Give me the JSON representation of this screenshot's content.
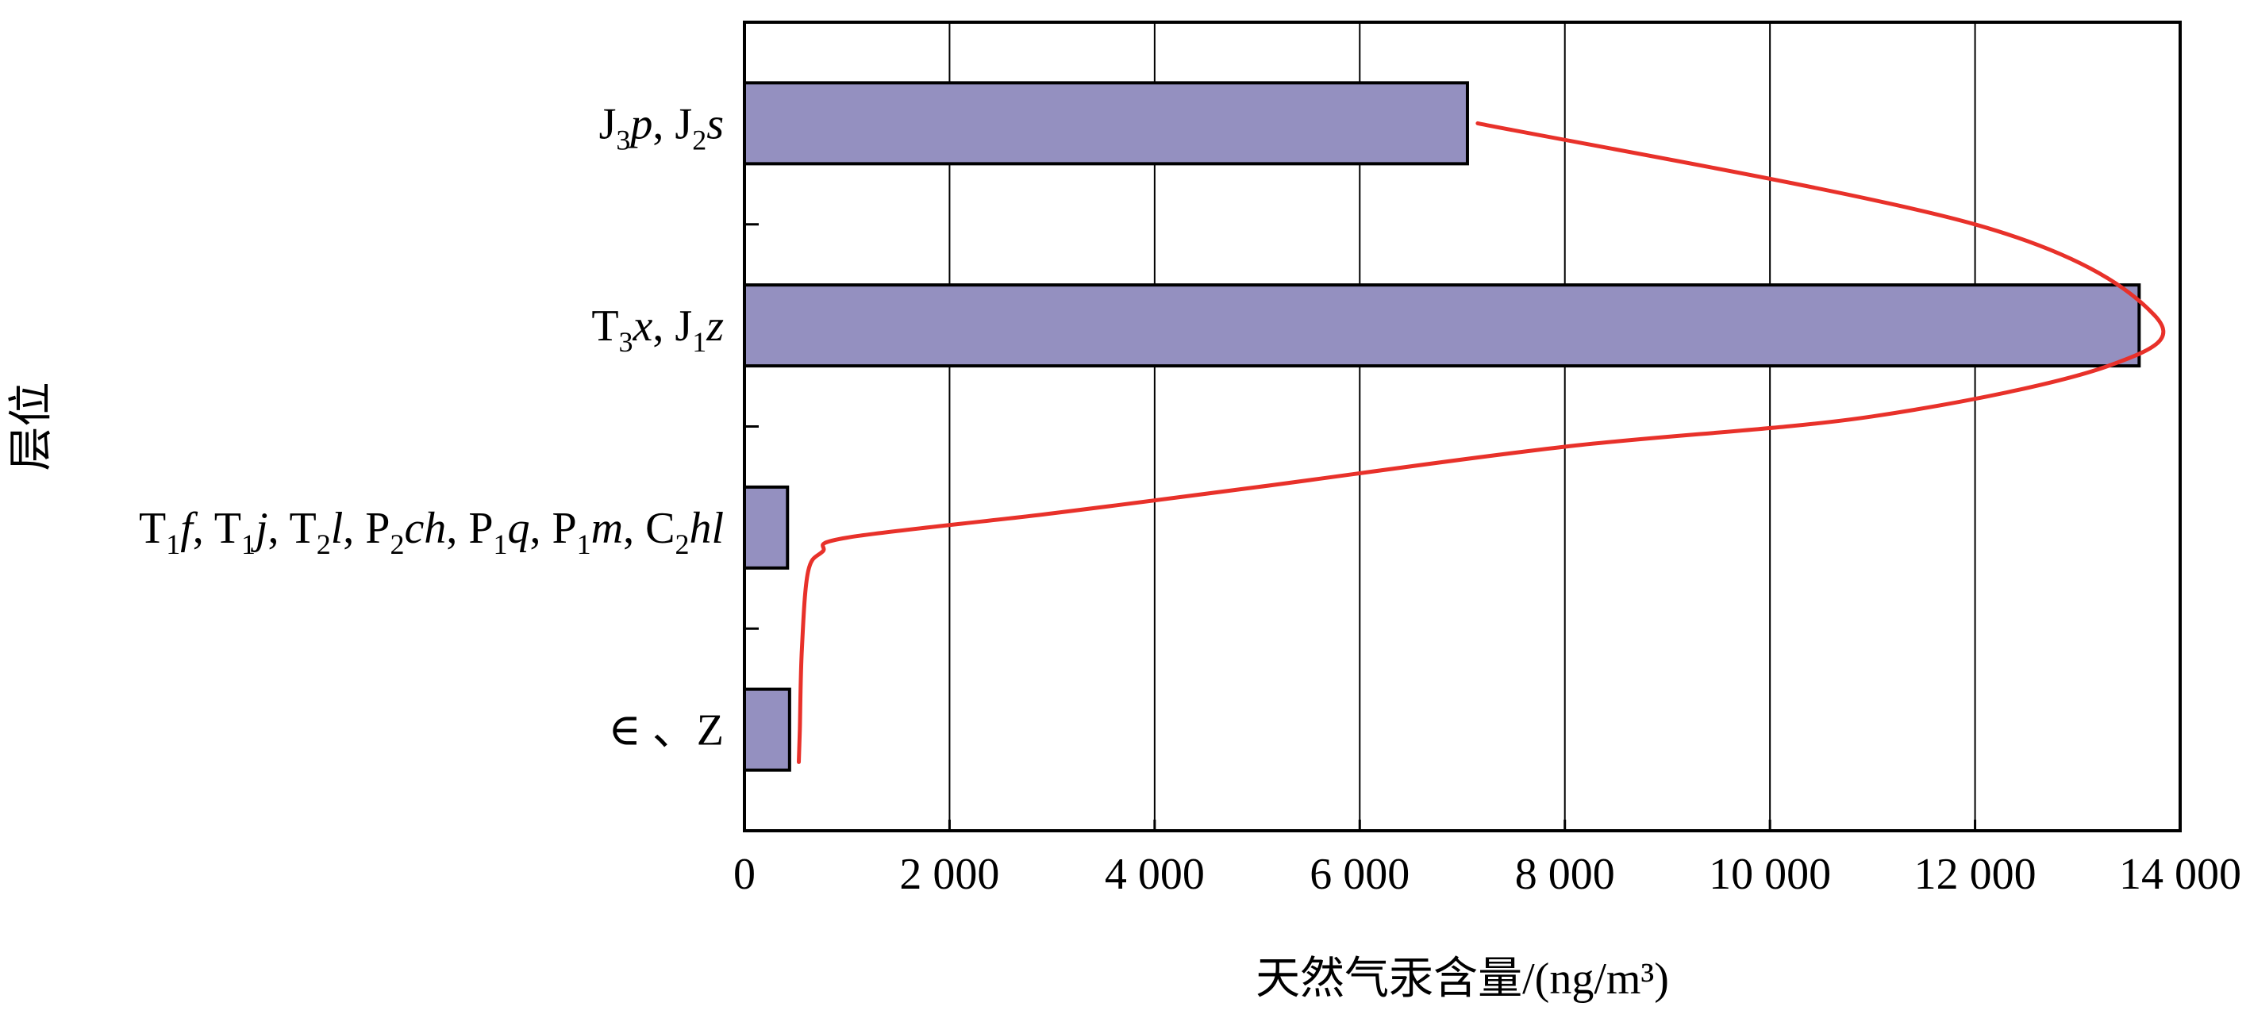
{
  "chart_data": {
    "type": "bar",
    "orientation": "horizontal",
    "categories": [
      [
        {
          "t": "J"
        },
        {
          "t": "3",
          "sub": true
        },
        {
          "t": "p",
          "it": true
        },
        {
          "t": ", J"
        },
        {
          "t": "2",
          "sub": true
        },
        {
          "t": "s",
          "it": true
        }
      ],
      [
        {
          "t": "T"
        },
        {
          "t": "3",
          "sub": true
        },
        {
          "t": "x",
          "it": true
        },
        {
          "t": ", J"
        },
        {
          "t": "1",
          "sub": true
        },
        {
          "t": "z",
          "it": true
        }
      ],
      [
        {
          "t": "T"
        },
        {
          "t": "1",
          "sub": true
        },
        {
          "t": "f",
          "it": true
        },
        {
          "t": ", T"
        },
        {
          "t": "1",
          "sub": true
        },
        {
          "t": "j",
          "it": true
        },
        {
          "t": ", T"
        },
        {
          "t": "2",
          "sub": true
        },
        {
          "t": "l",
          "it": true
        },
        {
          "t": ", P"
        },
        {
          "t": "2",
          "sub": true
        },
        {
          "t": "ch",
          "it": true
        },
        {
          "t": ", P"
        },
        {
          "t": "1",
          "sub": true
        },
        {
          "t": "q",
          "it": true
        },
        {
          "t": ", P"
        },
        {
          "t": "1",
          "sub": true
        },
        {
          "t": "m",
          "it": true
        },
        {
          "t": ", C"
        },
        {
          "t": "2",
          "sub": true
        },
        {
          "t": "hl",
          "it": true
        }
      ],
      [
        {
          "t": "∈ 、Z"
        }
      ]
    ],
    "values": [
      7050,
      13600,
      420,
      440
    ],
    "xlim": [
      0,
      14000
    ],
    "xticks": [
      0,
      2000,
      4000,
      6000,
      8000,
      10000,
      12000,
      14000
    ],
    "xtick_labels": [
      "0",
      "2 000",
      "4 000",
      "6 000",
      "8 000",
      "10 000",
      "12 000",
      "14 000"
    ],
    "xlabel": "天然气汞含量/(ng/m³)",
    "ylabel": "层位",
    "grid": "vertical",
    "bar_color": "#9490c0",
    "bar_edge_color": "#000000",
    "trend_line": {
      "color": "#e8312a",
      "points": [
        [
          7150,
          0.0
        ],
        [
          12000,
          0.5
        ],
        [
          13750,
          0.95
        ],
        [
          13300,
          1.2
        ],
        [
          11000,
          1.45
        ],
        [
          8000,
          1.6
        ],
        [
          5000,
          1.8
        ],
        [
          3000,
          1.93
        ],
        [
          1000,
          2.05
        ],
        [
          760,
          2.12
        ],
        [
          620,
          2.22
        ],
        [
          560,
          2.6
        ],
        [
          540,
          3.0
        ],
        [
          530,
          3.16
        ]
      ]
    }
  }
}
